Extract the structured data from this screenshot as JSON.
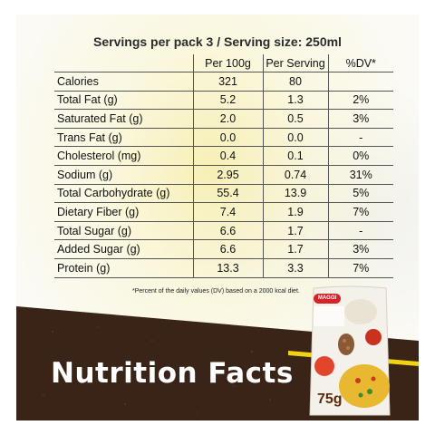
{
  "panel": {
    "heading": "Servings per pack 3 / Serving size: 250ml",
    "columns": [
      "",
      "Per 100g",
      "Per Serving",
      "%DV*"
    ],
    "rows": [
      {
        "name": "Calories",
        "per100": "321",
        "perServing": "80",
        "dv": ""
      },
      {
        "name": "Total Fat (g)",
        "per100": "5.2",
        "perServing": "1.3",
        "dv": "2%"
      },
      {
        "name": "Saturated Fat (g)",
        "per100": "2.0",
        "perServing": "0.5",
        "dv": "3%"
      },
      {
        "name": "Trans Fat (g)",
        "per100": "0.0",
        "perServing": "0.0",
        "dv": "-"
      },
      {
        "name": "Cholesterol (mg)",
        "per100": "0.4",
        "perServing": "0.1",
        "dv": "0%"
      },
      {
        "name": "Sodium (g)",
        "per100": "2.95",
        "perServing": "0.74",
        "dv": "31%"
      },
      {
        "name": "Total Carbohydrate (g)",
        "per100": "55.4",
        "perServing": "13.9",
        "dv": "5%"
      },
      {
        "name": "Dietary Fiber (g)",
        "per100": "7.4",
        "perServing": "1.9",
        "dv": "7%"
      },
      {
        "name": "Total Sugar (g)",
        "per100": "6.6",
        "perServing": "1.7",
        "dv": "-"
      },
      {
        "name": "Added Sugar (g)",
        "per100": "6.6",
        "perServing": "1.7",
        "dv": "3%"
      },
      {
        "name": "Protein (g)",
        "per100": "13.3",
        "perServing": "3.3",
        "dv": "7%"
      }
    ],
    "footnote": "*Percent of the daily values (DV) based on a 2000 kcal diet."
  },
  "banner": {
    "title": "Nutrition Facts",
    "brand": "MAGGI",
    "pack_weight": "75g"
  },
  "colors": {
    "banner_brown": "#3a2417",
    "accent_yellow": "#f2d30f",
    "brand_red": "#d6232a"
  }
}
